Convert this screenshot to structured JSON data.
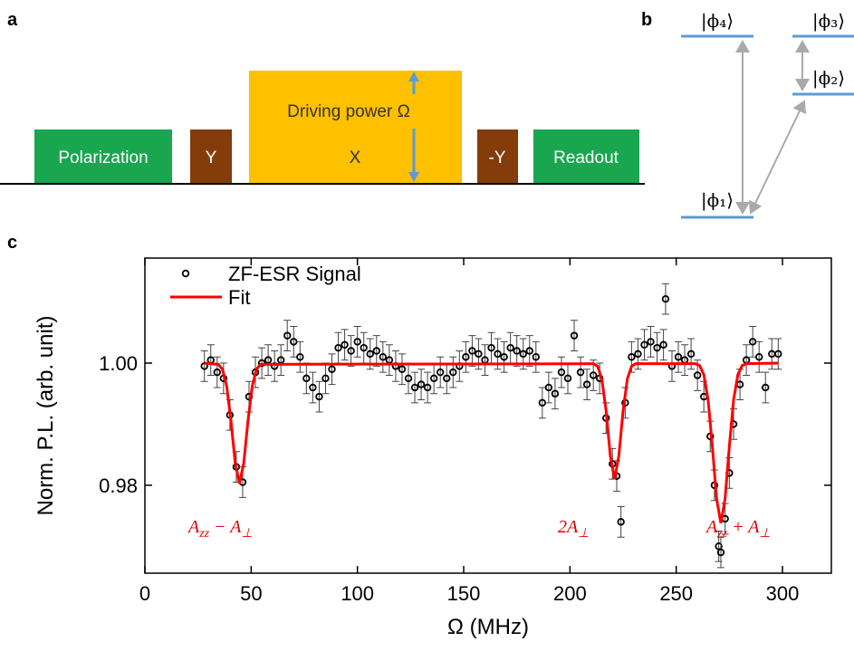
{
  "panel_a": {
    "label": "a",
    "blocks": [
      "Polarization",
      "Y",
      "X",
      "-Y",
      "Readout"
    ],
    "note": "Driving power Ω"
  },
  "panel_b": {
    "label": "b",
    "levels": [
      "|ϕ₄⟩",
      "|ϕ₃⟩",
      "|ϕ₂⟩",
      "|ϕ₁⟩"
    ]
  },
  "panel_c": {
    "label": "c"
  },
  "chart_data": {
    "type": "scatter",
    "xlabel": "Ω (MHz)",
    "ylabel": "Norm. P.L. (arb. unit)",
    "xlim": [
      0,
      323
    ],
    "ylim": [
      0.9656,
      1.0172
    ],
    "xticks": [
      0,
      50,
      100,
      150,
      200,
      250,
      300
    ],
    "yticks": [
      {
        "value": 0.98,
        "label": "0.98"
      },
      {
        "value": 1.0,
        "label": "1.00"
      }
    ],
    "series": [
      {
        "name": "ZF-ESR Signal",
        "color": "#000000",
        "x": [
          28,
          31,
          34,
          37,
          40,
          43,
          46,
          49,
          52,
          55,
          58,
          61,
          64,
          67,
          70,
          73,
          76,
          79,
          82,
          85,
          88,
          91,
          94,
          97,
          100,
          103,
          106,
          109,
          112,
          115,
          118,
          121,
          124,
          127,
          130,
          133,
          136,
          139,
          142,
          145,
          148,
          151,
          154,
          157,
          160,
          163,
          166,
          169,
          172,
          175,
          178,
          181,
          184,
          187,
          190,
          193,
          196,
          199,
          202,
          205,
          208,
          211,
          214,
          217,
          220,
          222,
          224,
          226,
          229,
          232,
          235,
          238,
          241,
          244,
          245,
          248,
          251,
          254,
          257,
          260,
          263,
          266,
          268,
          270,
          271,
          273,
          275,
          277,
          280,
          283,
          286,
          289,
          292,
          295,
          298
        ],
        "values": [
          0.9995,
          1.0005,
          0.9985,
          0.9975,
          0.9915,
          0.983,
          0.9805,
          0.9945,
          0.9985,
          1.0,
          1.0005,
          0.9995,
          1.0005,
          1.0045,
          1.0035,
          1.001,
          0.9975,
          0.996,
          0.9945,
          0.9975,
          0.999,
          1.0025,
          1.003,
          1.002,
          1.0035,
          1.0025,
          1.0015,
          1.002,
          1.001,
          1.0005,
          0.9995,
          0.999,
          0.9975,
          0.996,
          0.9965,
          0.996,
          0.9975,
          0.9985,
          0.9975,
          0.9985,
          0.9995,
          1.001,
          1.002,
          1.0015,
          1.0005,
          1.0025,
          1.0015,
          1.001,
          1.0025,
          1.002,
          1.0015,
          1.002,
          1.001,
          0.9935,
          0.996,
          0.995,
          0.9985,
          0.9975,
          1.0045,
          0.9985,
          0.9965,
          0.998,
          0.9975,
          0.991,
          0.9835,
          0.9815,
          0.974,
          0.9935,
          1.001,
          1.0015,
          1.003,
          1.0035,
          1.0025,
          1.003,
          1.0105,
          0.9995,
          1.001,
          1.0005,
          1.0015,
          0.998,
          0.9945,
          0.988,
          0.98,
          0.97,
          0.969,
          0.9745,
          0.982,
          0.99,
          0.9965,
          1.0005,
          1.0035,
          1.001,
          0.996,
          1.0015,
          1.0015
        ],
        "errors": [
          0.0025,
          0.0025,
          0.0025,
          0.0025,
          0.0025,
          0.0025,
          0.0025,
          0.0025,
          0.0025,
          0.0025,
          0.0025,
          0.0025,
          0.0025,
          0.0025,
          0.0025,
          0.0025,
          0.0025,
          0.0025,
          0.0025,
          0.0025,
          0.0025,
          0.0025,
          0.0025,
          0.0025,
          0.0025,
          0.0025,
          0.0025,
          0.0025,
          0.0025,
          0.0025,
          0.0025,
          0.0025,
          0.0025,
          0.0025,
          0.0025,
          0.0025,
          0.0025,
          0.0025,
          0.0025,
          0.0025,
          0.0025,
          0.0025,
          0.0025,
          0.0025,
          0.0025,
          0.0025,
          0.0025,
          0.0025,
          0.0025,
          0.0025,
          0.0025,
          0.0025,
          0.0025,
          0.0025,
          0.0025,
          0.0025,
          0.0025,
          0.0025,
          0.0025,
          0.0025,
          0.0025,
          0.0025,
          0.0025,
          0.0025,
          0.0025,
          0.0025,
          0.0025,
          0.0025,
          0.0025,
          0.0025,
          0.0025,
          0.0025,
          0.0025,
          0.0025,
          0.0025,
          0.0025,
          0.0025,
          0.0025,
          0.0025,
          0.0025,
          0.0025,
          0.0025,
          0.0025,
          0.0025,
          0.0025,
          0.0025,
          0.0025,
          0.0025,
          0.0025,
          0.0025,
          0.0025,
          0.0025,
          0.0025,
          0.0025,
          0.0025
        ]
      },
      {
        "name": "Fit",
        "color": "#ff0000",
        "x": [
          28,
          34.5,
          36.5,
          38.5,
          40.5,
          42.5,
          44.5,
          46.5,
          48.5,
          50.5,
          52.5,
          54.5,
          211,
          213,
          215,
          217,
          219,
          221,
          223,
          225,
          227,
          229,
          231,
          259,
          261,
          263,
          265,
          267,
          269,
          271,
          273,
          275,
          277,
          279,
          281,
          283,
          298
        ],
        "values": [
          1.0,
          0.9998,
          0.999,
          0.9962,
          0.9905,
          0.9836,
          0.9803,
          0.9836,
          0.9905,
          0.9962,
          0.999,
          0.9998,
          0.9999,
          0.9995,
          0.9974,
          0.9922,
          0.9848,
          0.981,
          0.9848,
          0.9922,
          0.9974,
          0.9995,
          0.9999,
          0.9999,
          0.9996,
          0.9981,
          0.994,
          0.9864,
          0.9778,
          0.9738,
          0.9778,
          0.9864,
          0.994,
          0.9981,
          0.9996,
          0.9999,
          1.0
        ]
      }
    ],
    "annotations": [
      [
        "A",
        "zz",
        " − A",
        "⊥"
      ],
      [
        "2A",
        "⊥"
      ],
      [
        "A",
        "zz",
        " + A",
        "⊥"
      ]
    ]
  }
}
